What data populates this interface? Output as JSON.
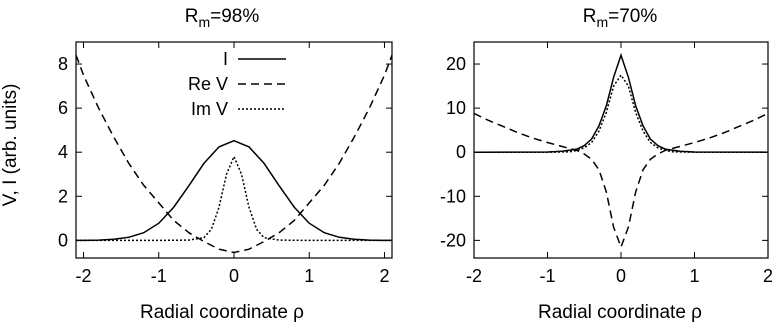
{
  "chart_data": [
    {
      "type": "line",
      "title": "R",
      "title_sub": "m",
      "title_suffix": "=98%",
      "xlabel": "Radial coordinate ρ",
      "ylabel": "V, I (arb. units)",
      "xlim": [
        -2.1,
        2.1
      ],
      "ylim": [
        -0.8,
        9
      ],
      "xticks": [
        -2,
        -1,
        0,
        1,
        2
      ],
      "yticks": [
        0,
        2,
        4,
        6,
        8
      ],
      "grid": false,
      "legend": "top-left",
      "series": [
        {
          "name": "I",
          "style": "solid",
          "x": [
            -2.1,
            -2.0,
            -1.8,
            -1.6,
            -1.4,
            -1.2,
            -1.0,
            -0.8,
            -0.6,
            -0.4,
            -0.2,
            0,
            0.2,
            0.4,
            0.6,
            0.8,
            1.0,
            1.2,
            1.4,
            1.6,
            1.8,
            2.0,
            2.1
          ],
          "y": [
            0.0,
            0.0,
            0.01,
            0.05,
            0.14,
            0.35,
            0.78,
            1.51,
            2.48,
            3.49,
            4.24,
            4.52,
            4.24,
            3.49,
            2.48,
            1.51,
            0.78,
            0.35,
            0.14,
            0.05,
            0.01,
            0.0,
            0.0
          ]
        },
        {
          "name": "Re V",
          "style": "dashed",
          "x": [
            -2.1,
            -2.0,
            -1.8,
            -1.6,
            -1.4,
            -1.2,
            -1.0,
            -0.8,
            -0.6,
            -0.4,
            -0.2,
            0,
            0.2,
            0.4,
            0.6,
            0.8,
            1.0,
            1.2,
            1.4,
            1.6,
            1.8,
            2.0,
            2.1
          ],
          "y": [
            8.4,
            7.5,
            6.0,
            4.7,
            3.5,
            2.5,
            1.7,
            0.9,
            0.35,
            -0.05,
            -0.4,
            -0.55,
            -0.4,
            -0.05,
            0.35,
            0.9,
            1.7,
            2.5,
            3.5,
            4.7,
            6.0,
            7.5,
            8.4
          ]
        },
        {
          "name": "Im V",
          "style": "dotted",
          "x": [
            -2.1,
            -1.0,
            -0.6,
            -0.4,
            -0.3,
            -0.2,
            -0.1,
            0,
            0.1,
            0.2,
            0.3,
            0.4,
            0.6,
            1.0,
            2.1
          ],
          "y": [
            0.0,
            0.0,
            0.01,
            0.12,
            0.5,
            1.5,
            3.0,
            3.8,
            3.0,
            1.5,
            0.5,
            0.12,
            0.01,
            0.0,
            0.0
          ]
        }
      ]
    },
    {
      "type": "line",
      "title": "R",
      "title_sub": "m",
      "title_suffix": "=70%",
      "xlabel": "Radial coordinate ρ",
      "ylabel": "",
      "xlim": [
        -2,
        2
      ],
      "ylim": [
        -24,
        25
      ],
      "xticks": [
        -2,
        -1,
        0,
        1,
        2
      ],
      "yticks": [
        -20,
        -10,
        0,
        10,
        20
      ],
      "grid": false,
      "series": [
        {
          "name": "I",
          "style": "solid",
          "x": [
            -2.0,
            -1.0,
            -0.8,
            -0.6,
            -0.5,
            -0.4,
            -0.3,
            -0.2,
            -0.1,
            0,
            0.1,
            0.2,
            0.3,
            0.4,
            0.5,
            0.6,
            0.8,
            1.0,
            2.0
          ],
          "y": [
            0.0,
            0.05,
            0.2,
            0.7,
            1.5,
            3.0,
            6.0,
            10.5,
            17.0,
            22.0,
            17.0,
            10.5,
            6.0,
            3.0,
            1.5,
            0.7,
            0.2,
            0.05,
            0.0
          ]
        },
        {
          "name": "Re V",
          "style": "dashed",
          "x": [
            -2.0,
            -1.8,
            -1.6,
            -1.4,
            -1.2,
            -1.0,
            -0.8,
            -0.6,
            -0.5,
            -0.4,
            -0.3,
            -0.2,
            -0.1,
            0,
            0.1,
            0.2,
            0.3,
            0.4,
            0.5,
            0.6,
            0.8,
            1.0,
            1.2,
            1.4,
            1.6,
            1.8,
            2.0
          ],
          "y": [
            8.8,
            7.2,
            5.8,
            4.4,
            3.2,
            2.2,
            1.3,
            0.4,
            -0.4,
            -1.6,
            -4.0,
            -9.0,
            -17.0,
            -21.5,
            -17.0,
            -9.0,
            -4.0,
            -1.6,
            -0.4,
            0.4,
            1.3,
            2.2,
            3.2,
            4.4,
            5.8,
            7.2,
            8.8
          ]
        },
        {
          "name": "Im V",
          "style": "dotted",
          "x": [
            -2.0,
            -1.0,
            -0.7,
            -0.6,
            -0.5,
            -0.4,
            -0.3,
            -0.2,
            -0.1,
            0,
            0.1,
            0.2,
            0.3,
            0.4,
            0.5,
            0.6,
            0.7,
            1.0,
            2.0
          ],
          "y": [
            0.0,
            0.0,
            0.1,
            0.4,
            1.0,
            2.2,
            4.8,
            9.0,
            15.0,
            17.5,
            15.0,
            9.0,
            4.8,
            2.2,
            1.0,
            0.4,
            0.1,
            0.0,
            0.0
          ]
        }
      ]
    }
  ]
}
